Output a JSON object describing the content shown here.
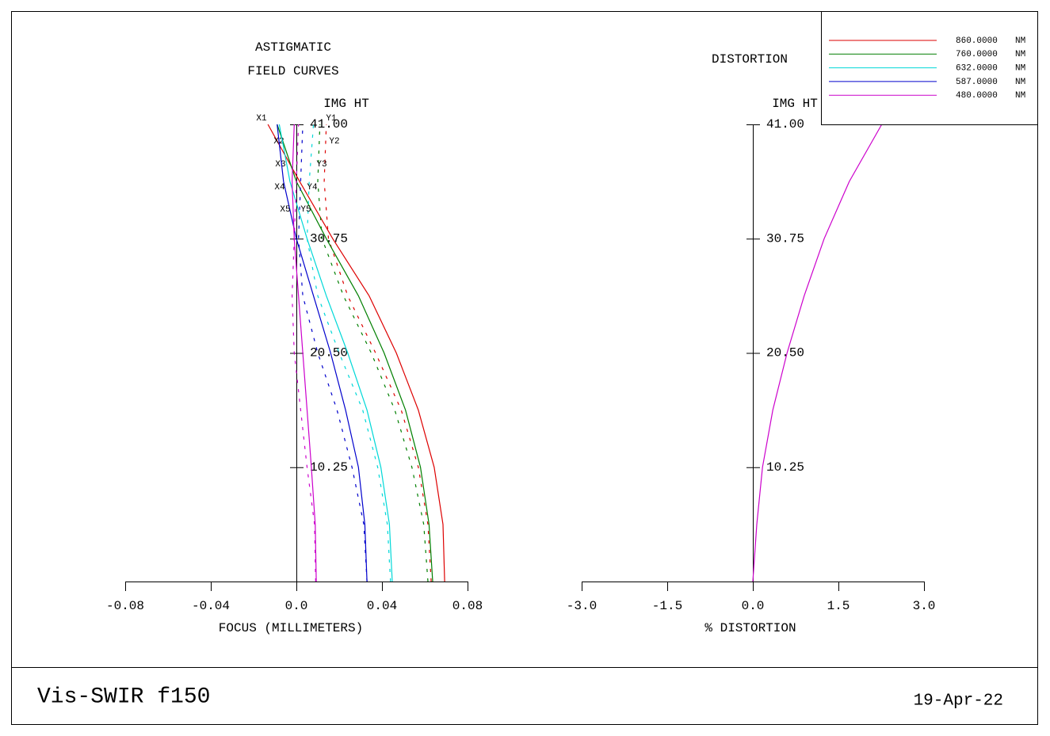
{
  "chart_data": [
    {
      "type": "field-curves",
      "title": [
        "ASTIGMATIC",
        "FIELD CURVES"
      ],
      "y_label": "IMG HT",
      "x_label": "FOCUS (MILLIMETERS)",
      "xlim": [
        -0.08,
        0.08
      ],
      "xticks": [
        -0.08,
        -0.04,
        {
          "value": 0,
          "label": "0.0"
        },
        0.04,
        0.08
      ],
      "ylim": [
        0,
        41
      ],
      "yticks": [
        10.25,
        {
          "value": 20.5,
          "label": "20.50"
        },
        30.75,
        {
          "value": 41,
          "label": "41.00"
        }
      ],
      "y": [
        0,
        5.125,
        10.25,
        15.375,
        20.5,
        25.625,
        30.75,
        35.875,
        41
      ],
      "series": [
        {
          "name": "X1",
          "color": "#dd0000",
          "style": "solid",
          "values": [
            0.0693,
            0.0685,
            0.0644,
            0.057,
            0.0467,
            0.034,
            0.017,
            0.0015,
            -0.0133
          ]
        },
        {
          "name": "Y1",
          "color": "#dd0000",
          "style": "dashed",
          "values": [
            0.063,
            0.0615,
            0.057,
            0.049,
            0.037,
            0.024,
            0.015,
            0.013,
            0.014
          ]
        },
        {
          "name": "X2",
          "color": "#007f00",
          "style": "solid",
          "values": [
            0.0637,
            0.062,
            0.058,
            0.051,
            0.041,
            0.029,
            0.014,
            0.0,
            -0.009
          ]
        },
        {
          "name": "Y2",
          "color": "#007f00",
          "style": "dashed",
          "values": [
            0.0615,
            0.0595,
            0.054,
            0.046,
            0.035,
            0.022,
            0.012,
            0.01,
            0.011
          ]
        },
        {
          "name": "X3",
          "color": "#00d8d8",
          "style": "solid",
          "values": [
            0.0448,
            0.0435,
            0.0395,
            0.033,
            0.024,
            0.014,
            0.005,
            -0.003,
            -0.008
          ]
        },
        {
          "name": "Y3",
          "color": "#00d8d8",
          "style": "dashed",
          "values": [
            0.044,
            0.0425,
            0.038,
            0.031,
            0.02,
            0.01,
            0.005,
            0.006,
            0.008
          ]
        },
        {
          "name": "X4",
          "color": "#0000cc",
          "style": "solid",
          "values": [
            0.033,
            0.032,
            0.029,
            0.023,
            0.016,
            0.008,
            0.0,
            -0.006,
            -0.009
          ]
        },
        {
          "name": "Y4",
          "color": "#0000cc",
          "style": "dashed",
          "values": [
            0.033,
            0.0315,
            0.026,
            0.019,
            0.01,
            0.003,
            0.001,
            0.002,
            0.003
          ]
        },
        {
          "name": "X5",
          "color": "#cc00cc",
          "style": "solid",
          "values": [
            0.0093,
            0.0088,
            0.007,
            0.005,
            0.003,
            0.001,
            -0.001,
            -0.002,
            -0.001
          ]
        },
        {
          "name": "Y5",
          "color": "#cc00cc",
          "style": "dashed",
          "values": [
            0.009,
            0.0085,
            0.005,
            0.002,
            -0.001,
            -0.002,
            -0.001,
            0.0,
            0.001
          ]
        }
      ]
    },
    {
      "type": "distortion",
      "title": [
        "DISTORTION"
      ],
      "y_label": "IMG HT",
      "x_label": "% DISTORTION",
      "xlim": [
        -3,
        3
      ],
      "xticks": [
        {
          "value": -3,
          "label": "-3.0"
        },
        -1.5,
        {
          "value": 0,
          "label": "0.0"
        },
        1.5,
        {
          "value": 3,
          "label": "3.0"
        }
      ],
      "ylim": [
        0,
        41
      ],
      "yticks": [
        10.25,
        {
          "value": 20.5,
          "label": "20.50"
        },
        30.75,
        {
          "value": 41,
          "label": "41.00"
        }
      ],
      "y": [
        0,
        5.125,
        10.25,
        15.375,
        20.5,
        25.625,
        30.75,
        35.875,
        41
      ],
      "series": [
        {
          "color": "#cc00cc",
          "style": "solid",
          "values": [
            0,
            0.07,
            0.17,
            0.35,
            0.6,
            0.9,
            1.25,
            1.69,
            2.26
          ]
        }
      ]
    }
  ],
  "legend": [
    {
      "wavelength": "860.0000",
      "unit": "NM",
      "color": "#dd0000"
    },
    {
      "wavelength": "760.0000",
      "unit": "NM",
      "color": "#007f00"
    },
    {
      "wavelength": "632.0000",
      "unit": "NM",
      "color": "#00d8d8"
    },
    {
      "wavelength": "587.0000",
      "unit": "NM",
      "color": "#0000cc"
    },
    {
      "wavelength": "480.0000",
      "unit": "NM",
      "color": "#cc00cc"
    }
  ],
  "footer": {
    "title": "Vis-SWIR f150",
    "date": "19-Apr-22"
  }
}
